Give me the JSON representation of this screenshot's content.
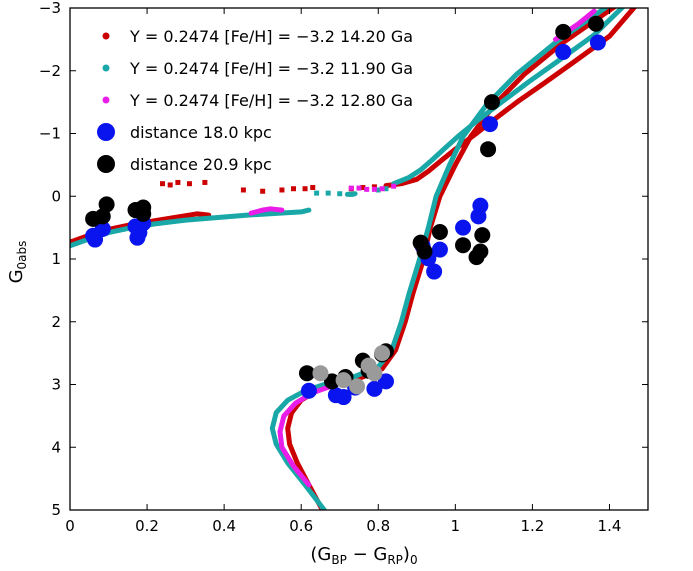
{
  "chart_data": {
    "type": "scatter",
    "title": "",
    "xlabel": "(G_BP − G_RP)_0",
    "ylabel": "G_0abs",
    "xlabel_parts": {
      "open": "(G",
      "sub1": "BP",
      "minus": " − G",
      "sub2": "RP",
      "close": ")",
      "sub3": "0"
    },
    "ylabel_parts": {
      "main": "G",
      "sub": "0abs"
    },
    "xlim": [
      0,
      1.5
    ],
    "ylim": [
      5,
      -3
    ],
    "y_inverted": true,
    "x_ticks": [
      "0",
      "0.2",
      "0.4",
      "0.6",
      "0.8",
      "1",
      "1.2",
      "1.4"
    ],
    "y_ticks": [
      "−3",
      "−2",
      "−1",
      "0",
      "1",
      "2",
      "3",
      "4",
      "5"
    ],
    "legend_position": "top-left",
    "legend": [
      {
        "label": "Y = 0.2474 [Fe/H] = −3.2 14.20 Ga",
        "color": "#cc0000",
        "marker": "small"
      },
      {
        "label": "Y = 0.2474 [Fe/H] = −3.2 11.90 Ga",
        "color": "#1aa7a7",
        "marker": "small"
      },
      {
        "label": "Y = 0.2474 [Fe/H] = −3.2 12.80 Ga",
        "color": "#e81ee8",
        "marker": "small"
      },
      {
        "label": "distance 18.0 kpc",
        "color": "#0a14ee",
        "marker": "large"
      },
      {
        "label": "distance 20.9 kpc",
        "color": "#000000",
        "marker": "large"
      }
    ],
    "series": [
      {
        "name": "Y = 0.2474 [Fe/H] = −3.2 14.20 Ga",
        "kind": "isochrone",
        "color": "#cc0000",
        "width": 5,
        "segments": [
          [
            [
              0.655,
              5.0
            ],
            [
              0.62,
              4.6
            ],
            [
              0.59,
              4.25
            ],
            [
              0.57,
              3.95
            ],
            [
              0.565,
              3.7
            ],
            [
              0.575,
              3.45
            ],
            [
              0.6,
              3.25
            ],
            [
              0.64,
              3.1
            ],
            [
              0.7,
              2.98
            ],
            [
              0.76,
              2.88
            ],
            [
              0.81,
              2.75
            ],
            [
              0.845,
              2.45
            ],
            [
              0.87,
              2.0
            ],
            [
              0.89,
              1.55
            ],
            [
              0.915,
              1.05
            ],
            [
              0.935,
              0.5
            ],
            [
              0.96,
              0.0
            ],
            [
              1.0,
              -0.5
            ],
            [
              1.04,
              -0.95
            ],
            [
              1.1,
              -1.45
            ],
            [
              1.18,
              -1.95
            ],
            [
              1.28,
              -2.45
            ],
            [
              1.42,
              -3.05
            ]
          ],
          [
            [
              0.0,
              0.73
            ],
            [
              0.05,
              0.62
            ],
            [
              0.1,
              0.53
            ],
            [
              0.16,
              0.45
            ],
            [
              0.22,
              0.39
            ],
            [
              0.28,
              0.33
            ],
            [
              0.33,
              0.28
            ],
            [
              0.36,
              0.3
            ]
          ],
          [
            [
              0.82,
              -0.17
            ],
            [
              0.86,
              -0.2
            ],
            [
              0.9,
              -0.27
            ],
            [
              0.93,
              -0.4
            ],
            [
              0.96,
              -0.55
            ],
            [
              1.0,
              -0.75
            ],
            [
              1.05,
              -0.98
            ],
            [
              1.1,
              -1.22
            ],
            [
              1.16,
              -1.5
            ],
            [
              1.23,
              -1.8
            ],
            [
              1.31,
              -2.15
            ],
            [
              1.4,
              -2.55
            ],
            [
              1.47,
              -3.05
            ]
          ]
        ],
        "scatter": [
          [
            0.24,
            -0.2
          ],
          [
            0.26,
            -0.18
          ],
          [
            0.28,
            -0.22
          ],
          [
            0.31,
            -0.2
          ],
          [
            0.35,
            -0.22
          ],
          [
            0.45,
            -0.1
          ],
          [
            0.5,
            -0.08
          ],
          [
            0.55,
            -0.1
          ],
          [
            0.58,
            -0.12
          ],
          [
            0.61,
            -0.12
          ],
          [
            0.63,
            -0.14
          ],
          [
            0.73,
            -0.12
          ],
          [
            0.76,
            -0.14
          ],
          [
            0.79,
            -0.15
          ]
        ]
      },
      {
        "name": "Y = 0.2474 [Fe/H] = −3.2 11.90 Ga",
        "kind": "isochrone",
        "color": "#1aa7a7",
        "width": 5,
        "segments": [
          [
            [
              0.66,
              5.0
            ],
            [
              0.61,
              4.6
            ],
            [
              0.565,
              4.25
            ],
            [
              0.535,
              3.95
            ],
            [
              0.525,
              3.7
            ],
            [
              0.535,
              3.45
            ],
            [
              0.565,
              3.25
            ],
            [
              0.61,
              3.1
            ],
            [
              0.67,
              2.98
            ],
            [
              0.74,
              2.87
            ],
            [
              0.8,
              2.72
            ],
            [
              0.835,
              2.45
            ],
            [
              0.86,
              2.0
            ],
            [
              0.88,
              1.55
            ],
            [
              0.905,
              1.05
            ],
            [
              0.93,
              0.5
            ],
            [
              0.95,
              0.0
            ],
            [
              0.985,
              -0.5
            ],
            [
              1.02,
              -0.95
            ],
            [
              1.08,
              -1.45
            ],
            [
              1.16,
              -1.95
            ],
            [
              1.26,
              -2.45
            ],
            [
              1.4,
              -3.05
            ]
          ],
          [
            [
              0.0,
              0.79
            ],
            [
              0.05,
              0.68
            ],
            [
              0.1,
              0.58
            ],
            [
              0.16,
              0.5
            ],
            [
              0.22,
              0.44
            ],
            [
              0.3,
              0.38
            ],
            [
              0.38,
              0.34
            ],
            [
              0.46,
              0.3
            ],
            [
              0.54,
              0.27
            ],
            [
              0.6,
              0.25
            ],
            [
              0.62,
              0.22
            ]
          ],
          [
            [
              0.72,
              -0.03
            ],
            [
              0.74,
              -0.04
            ]
          ],
          [
            [
              0.84,
              -0.2
            ],
            [
              0.88,
              -0.3
            ],
            [
              0.91,
              -0.42
            ],
            [
              0.94,
              -0.58
            ],
            [
              0.97,
              -0.75
            ],
            [
              1.01,
              -0.97
            ],
            [
              1.06,
              -1.22
            ],
            [
              1.12,
              -1.5
            ],
            [
              1.19,
              -1.82
            ],
            [
              1.27,
              -2.17
            ],
            [
              1.36,
              -2.57
            ],
            [
              1.44,
              -3.05
            ]
          ]
        ],
        "scatter": [
          [
            0.64,
            -0.05
          ],
          [
            0.67,
            -0.05
          ],
          [
            0.7,
            -0.04
          ],
          [
            0.73,
            -0.03
          ],
          [
            0.8,
            -0.1
          ],
          [
            0.82,
            -0.12
          ]
        ]
      },
      {
        "name": "Y = 0.2474 [Fe/H] = −3.2 12.80 Ga",
        "kind": "isochrone",
        "color": "#e81ee8",
        "width": 5,
        "segments": [
          [
            [
              0.62,
              4.6
            ],
            [
              0.58,
              4.3
            ],
            [
              0.55,
              4.0
            ],
            [
              0.545,
              3.75
            ],
            [
              0.555,
              3.5
            ],
            [
              0.585,
              3.3
            ],
            [
              0.63,
              3.13
            ],
            [
              0.69,
              3.0
            ]
          ],
          [
            [
              0.47,
              0.27
            ],
            [
              0.5,
              0.22
            ],
            [
              0.52,
              0.2
            ],
            [
              0.55,
              0.22
            ]
          ],
          [
            [
              1.26,
              -2.5
            ],
            [
              1.32,
              -2.75
            ],
            [
              1.36,
              -2.95
            ]
          ]
        ],
        "scatter": [
          [
            0.73,
            -0.13
          ],
          [
            0.75,
            -0.13
          ],
          [
            0.77,
            -0.11
          ],
          [
            0.79,
            -0.11
          ],
          [
            0.81,
            -0.12
          ],
          [
            0.84,
            -0.16
          ]
        ]
      },
      {
        "name": "distance 18.0 kpc",
        "kind": "points",
        "color": "#0a14ee",
        "radius": 8,
        "points": [
          [
            0.06,
            0.63
          ],
          [
            0.065,
            0.69
          ],
          [
            0.085,
            0.52
          ],
          [
            0.17,
            0.48
          ],
          [
            0.18,
            0.58
          ],
          [
            0.175,
            0.66
          ],
          [
            0.19,
            0.43
          ],
          [
            0.62,
            3.1
          ],
          [
            0.69,
            3.17
          ],
          [
            0.71,
            3.2
          ],
          [
            0.74,
            3.05
          ],
          [
            0.79,
            3.07
          ],
          [
            0.82,
            2.95
          ],
          [
            0.915,
            0.79
          ],
          [
            0.93,
            0.99
          ],
          [
            0.945,
            1.2
          ],
          [
            0.96,
            0.85
          ],
          [
            1.02,
            0.5
          ],
          [
            1.06,
            0.32
          ],
          [
            1.065,
            0.15
          ],
          [
            1.09,
            -1.15
          ],
          [
            1.28,
            -2.3
          ],
          [
            1.37,
            -2.45
          ]
        ]
      },
      {
        "name": "distance 20.9 kpc",
        "kind": "points",
        "color": "#000000",
        "radius": 8,
        "points": [
          [
            0.06,
            0.36
          ],
          [
            0.085,
            0.32
          ],
          [
            0.095,
            0.13
          ],
          [
            0.17,
            0.22
          ],
          [
            0.19,
            0.18
          ],
          [
            0.19,
            0.28
          ],
          [
            0.615,
            2.82
          ],
          [
            0.68,
            2.95
          ],
          [
            0.715,
            2.88
          ],
          [
            0.76,
            2.62
          ],
          [
            0.775,
            2.78
          ],
          [
            0.81,
            2.52
          ],
          [
            0.82,
            2.47
          ],
          [
            0.91,
            0.74
          ],
          [
            0.92,
            0.88
          ],
          [
            0.96,
            0.57
          ],
          [
            1.02,
            0.78
          ],
          [
            1.055,
            0.97
          ],
          [
            1.065,
            0.88
          ],
          [
            1.07,
            0.62
          ],
          [
            1.085,
            -0.75
          ],
          [
            1.095,
            -1.5
          ],
          [
            1.28,
            -2.62
          ],
          [
            1.365,
            -2.75
          ]
        ]
      },
      {
        "name": "",
        "kind": "points",
        "color": "#9a9a9a",
        "radius": 8,
        "points": [
          [
            0.65,
            2.82
          ],
          [
            0.71,
            2.93
          ],
          [
            0.745,
            3.03
          ],
          [
            0.775,
            2.7
          ],
          [
            0.79,
            2.82
          ],
          [
            0.81,
            2.5
          ]
        ]
      }
    ]
  }
}
